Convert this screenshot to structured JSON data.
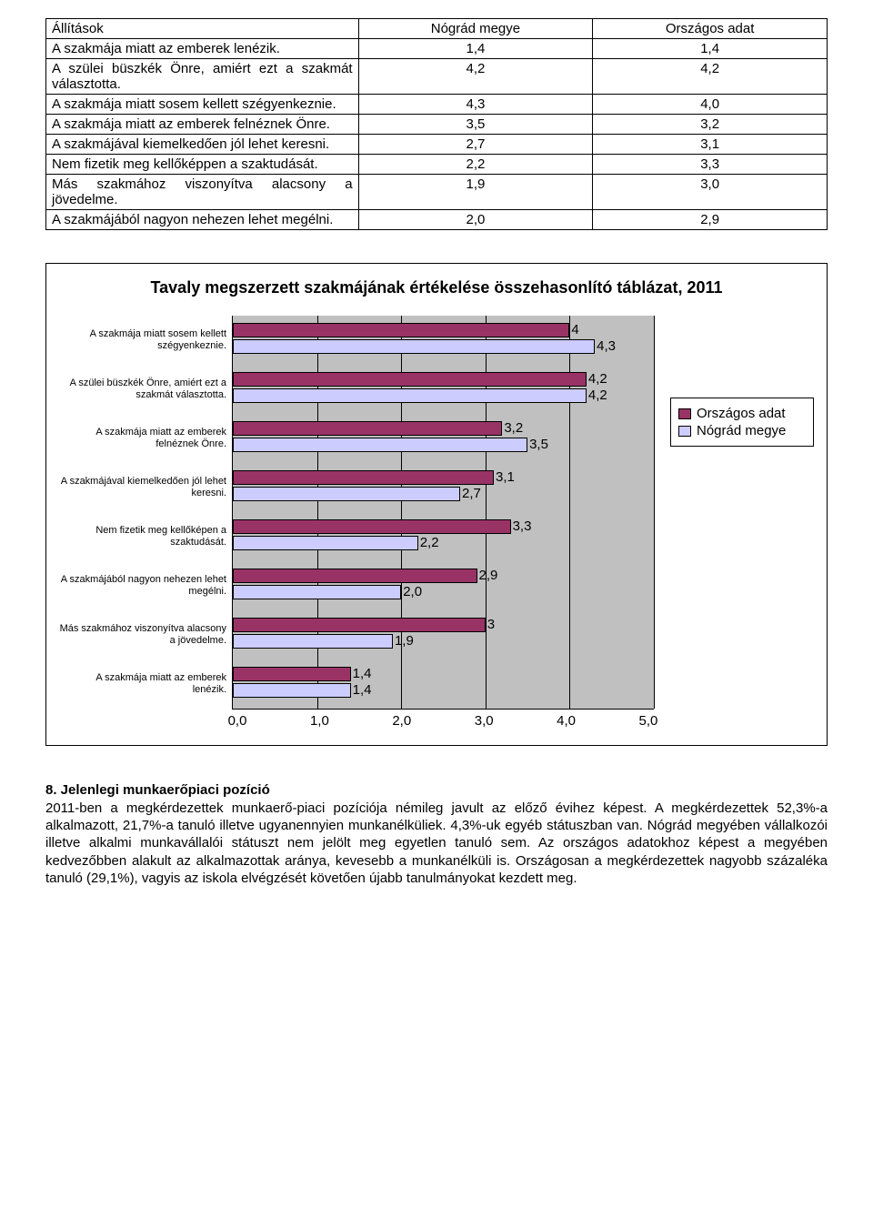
{
  "table": {
    "headers": [
      "Állítások",
      "Nógrád megye",
      "Országos adat"
    ],
    "rows": [
      [
        "A szakmája miatt az emberek lenézik.",
        "1,4",
        "1,4"
      ],
      [
        "A szülei büszkék Önre, amiért ezt a szakmát választotta.",
        "4,2",
        "4,2"
      ],
      [
        "A szakmája miatt sosem kellett szégyenkeznie.",
        "4,3",
        "4,0"
      ],
      [
        "A szakmája miatt az emberek felnéznek Önre.",
        "3,5",
        "3,2"
      ],
      [
        "A szakmájával kiemelkedően jól lehet keresni.",
        "2,7",
        "3,1"
      ],
      [
        "Nem fizetik meg kellőképpen a szaktudását.",
        "2,2",
        "3,3"
      ],
      [
        "Más szakmához viszonyítva alacsony a jövedelme.",
        "1,9",
        "3,0"
      ],
      [
        "A szakmájából nagyon nehezen lehet megélni.",
        "2,0",
        "2,9"
      ]
    ]
  },
  "chart": {
    "title": "Tavaly megszerzett szakmájának értékelése összehasonlító táblázat, 2011",
    "type": "bar",
    "x_min": 0.0,
    "x_max": 5.0,
    "x_ticks": [
      "0,0",
      "1,0",
      "2,0",
      "3,0",
      "4,0",
      "5,0"
    ],
    "series": [
      "Országos adat",
      "Nógrád megye"
    ],
    "series_colors": [
      "#993366",
      "#ccccff"
    ],
    "background_color": "#c0c0c0",
    "grid_color": "#000000",
    "bar_border": "#000000",
    "label_fontsize": 11,
    "value_fontsize": 15,
    "title_fontsize": 18,
    "items": [
      {
        "label": "A szakmája miatt sosem kellett szégyenkeznie.",
        "orszagos": 4.0,
        "nograd": 4.3,
        "orszagos_txt": "4",
        "nograd_txt": "4,3"
      },
      {
        "label": "A szülei büszkék Önre, amiért ezt a szakmát választotta.",
        "orszagos": 4.2,
        "nograd": 4.2,
        "orszagos_txt": "4,2",
        "nograd_txt": "4,2"
      },
      {
        "label": "A szakmája miatt az emberek felnéznek Önre.",
        "orszagos": 3.2,
        "nograd": 3.5,
        "orszagos_txt": "3,2",
        "nograd_txt": "3,5"
      },
      {
        "label": "A szakmájával kiemelkedően jól lehet keresni.",
        "orszagos": 3.1,
        "nograd": 2.7,
        "orszagos_txt": "3,1",
        "nograd_txt": "2,7"
      },
      {
        "label": "Nem fizetik meg kellőképen a szaktudását.",
        "orszagos": 3.3,
        "nograd": 2.2,
        "orszagos_txt": "3,3",
        "nograd_txt": "2,2"
      },
      {
        "label": "A szakmájából nagyon nehezen lehet megélni.",
        "orszagos": 2.9,
        "nograd": 2.0,
        "orszagos_txt": "2,9",
        "nograd_txt": "2,0"
      },
      {
        "label": "Más szakmához viszonyítva alacsony a jövedelme.",
        "orszagos": 3.0,
        "nograd": 1.9,
        "orszagos_txt": "3",
        "nograd_txt": "1,9"
      },
      {
        "label": "A szakmája miatt az emberek lenézik.",
        "orszagos": 1.4,
        "nograd": 1.4,
        "orszagos_txt": "1,4",
        "nograd_txt": "1,4"
      }
    ]
  },
  "section": {
    "heading": "8. Jelenlegi munkaerőpiaci pozíció",
    "body": "2011-ben a megkérdezettek munkaerő-piaci pozíciója némileg javult az előző évihez képest. A megkérdezettek 52,3%-a alkalmazott, 21,7%-a tanuló illetve ugyanennyien munkanélküliek. 4,3%-uk egyéb státuszban van. Nógrád megyében vállalkozói illetve alkalmi munkavállalói státuszt nem jelölt meg egyetlen tanuló sem. Az országos adatokhoz képest a megyében kedvezőbben alakult az alkalmazottak aránya, kevesebb a munkanélküli is. Országosan a megkérdezettek nagyobb százaléka tanuló (29,1%), vagyis az iskola elvégzését követően újabb tanulmányokat kezdett meg."
  }
}
